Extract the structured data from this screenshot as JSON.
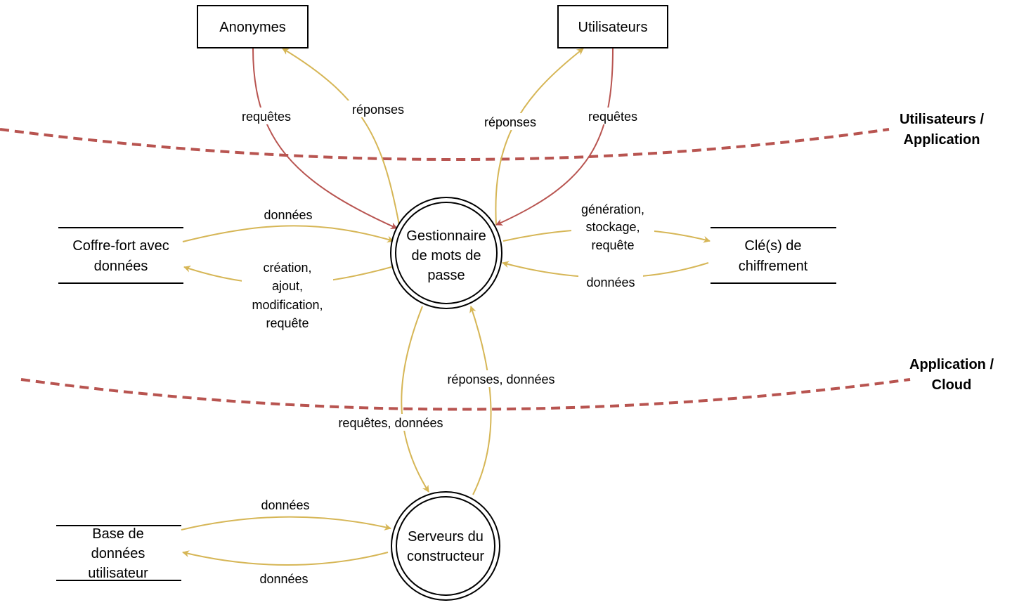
{
  "colors": {
    "request": "#b85450",
    "response": "#d6b656",
    "boundary": "#b85450"
  },
  "entities": {
    "anonymes": "Anonymes",
    "utilisateurs": "Utilisateurs"
  },
  "processes": {
    "gestionnaire": [
      "Gestionnaire",
      "de mots de",
      "passe"
    ],
    "serveurs": [
      "Serveurs du",
      "constructeur"
    ]
  },
  "stores": {
    "coffre": [
      "Coffre-fort avec",
      "données"
    ],
    "cles": [
      "Clé(s) de",
      "chiffrement"
    ],
    "base": [
      "Base de",
      "données",
      "utilisateur"
    ]
  },
  "boundaries": {
    "user_app": [
      "Utilisateurs /",
      "Application"
    ],
    "app_cloud": [
      "Application /",
      "Cloud"
    ]
  },
  "flows": {
    "anon_requetes": "requêtes",
    "anon_reponses": "réponses",
    "util_reponses": "réponses",
    "util_requetes": "requêtes",
    "coffre_donnees": "données",
    "coffre_creation": [
      "création,",
      "ajout,",
      "modification,",
      "requête"
    ],
    "cles_generation": [
      "génération,",
      "stockage,",
      "requête"
    ],
    "cles_donnees": "données",
    "serveurs_reponses": "réponses, données",
    "serveurs_requetes": "requêtes, données",
    "base_donnees_in": "données",
    "base_donnees_out": "données"
  }
}
